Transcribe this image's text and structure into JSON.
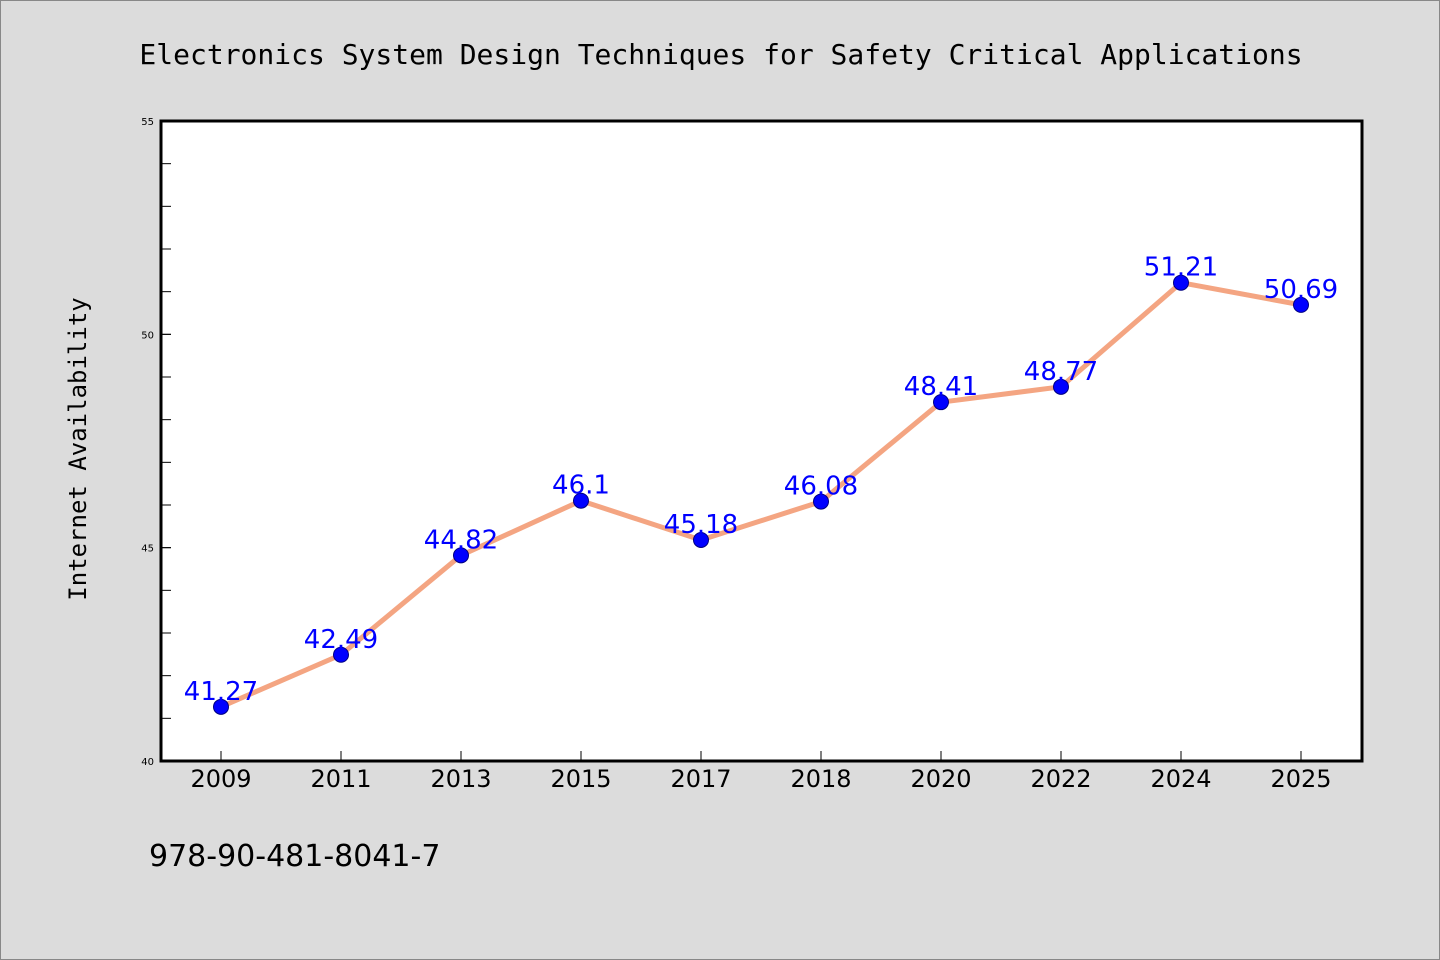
{
  "chart_data": {
    "type": "line",
    "title": "Electronics System Design Techniques for Safety Critical Applications",
    "xlabel": "",
    "ylabel": "Internet Availability",
    "categories": [
      "2009",
      "2011",
      "2013",
      "2015",
      "2017",
      "2018",
      "2020",
      "2022",
      "2024",
      "2025"
    ],
    "series": [
      {
        "values": [
          41.27,
          42.49,
          44.82,
          46.1,
          45.18,
          46.08,
          48.41,
          48.77,
          51.21,
          50.69
        ],
        "labels": [
          "41.27",
          "42.49",
          "44.82",
          "46.1",
          "45.18",
          "46.08",
          "48.41",
          "48.77",
          "51.21",
          "50.69"
        ]
      }
    ],
    "ylim": [
      40,
      55
    ],
    "yticks": [
      "40",
      "45",
      "50",
      "55"
    ],
    "y_minor_step": 1,
    "grid": false,
    "legend": "none",
    "colors": {
      "line": "#f4a582",
      "marker": "#0000ff",
      "label": "#0000ff",
      "plot_background": "#ffffff",
      "page_background": "#dcdcdc"
    }
  },
  "footer": {
    "isbn": "978-90-481-8041-7"
  }
}
